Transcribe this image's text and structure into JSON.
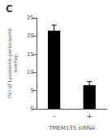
{
  "chart_data": {
    "type": "bar",
    "title": "C",
    "categories": [
      "-",
      "+"
    ],
    "values": [
      21.5,
      6.5
    ],
    "errors": [
      1.5,
      1.0
    ],
    "color": "#000000",
    "xlabel": "TMEM135 siRNA",
    "ylabel": "(%) of Lysosome-peroxisome\noverlap",
    "ylim": [
      0,
      25
    ],
    "yticks": [
      0,
      5,
      10,
      15,
      20,
      25
    ],
    "grid": false
  }
}
